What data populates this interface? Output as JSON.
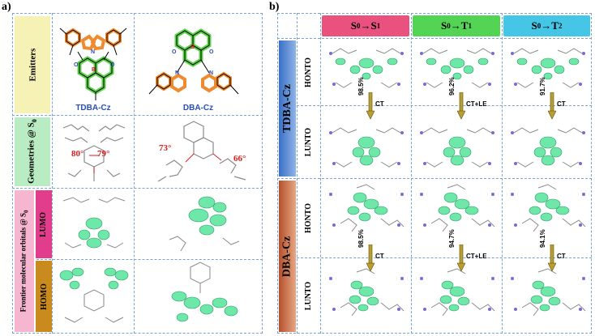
{
  "panel_a": {
    "label": "a)",
    "row_labels": {
      "emitters": "Emitters",
      "geometries": "Geometries @ S",
      "geometries_sub": "0",
      "frontier": "Frontier molecular orbitals @ S",
      "frontier_sub": "0",
      "lumo": "LUMO",
      "homo": "HOMO"
    },
    "molecules": {
      "left": "TDBA-Cz",
      "right": "DBA-Cz"
    },
    "angles": {
      "left_a": "80°",
      "left_b": "79°",
      "right_a": "73°",
      "right_b": "66°"
    },
    "colors": {
      "emitters_bg": "#f6f2b6",
      "geometries_bg": "#b9ecc2",
      "frontier_bg": "#f7b6cf",
      "lumo_bg": "#e23c8c",
      "homo_bg": "#c98a1e",
      "carbazole": "#f08a2e",
      "boron_core": "#5cd14a"
    }
  },
  "panel_b": {
    "label": "b)",
    "columns": [
      {
        "base": "S",
        "sub": "0",
        "arrow": "→",
        "target": "S",
        "tsub": "1",
        "color": "#e9527e"
      },
      {
        "base": "S",
        "sub": "0",
        "arrow": "→",
        "target": "T",
        "tsub": "1",
        "color": "#54d454"
      },
      {
        "base": "S",
        "sub": "0",
        "arrow": "→",
        "target": "T",
        "tsub": "2",
        "color": "#45c6e6"
      }
    ],
    "groups": [
      {
        "name": "TDBA-Cz",
        "color": "#4c84d4",
        "rows": [
          "HONTO",
          "LUNTO"
        ],
        "transitions": [
          {
            "pct": "98.5%",
            "type": "CT"
          },
          {
            "pct": "96.2%",
            "type": "CT+LE"
          },
          {
            "pct": "91.7%",
            "type": "CT"
          }
        ]
      },
      {
        "name": "DBA-Cz",
        "color": "#c8643c",
        "rows": [
          "HONTO",
          "LUNTO"
        ],
        "transitions": [
          {
            "pct": "98.5%",
            "type": "CT"
          },
          {
            "pct": "94.7%",
            "type": "CT+LE"
          },
          {
            "pct": "94.1%",
            "type": "CT"
          }
        ]
      }
    ]
  }
}
